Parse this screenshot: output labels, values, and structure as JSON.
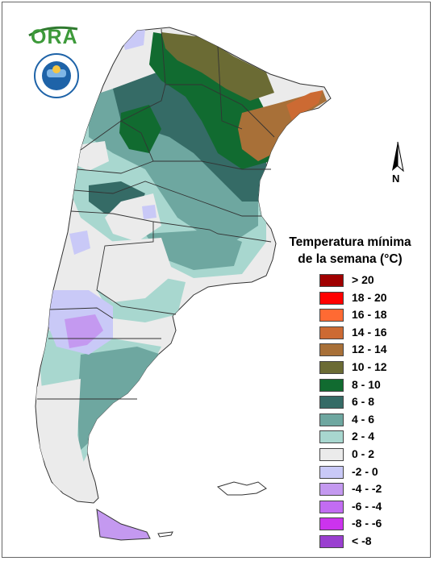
{
  "map": {
    "title_line1": "Temperatura mínima",
    "title_line2": "de la semana (°C)",
    "north_label": "N",
    "logo_text": "ORA",
    "legend": [
      {
        "label": "> 20",
        "color": "#a00000"
      },
      {
        "label": "18 - 20",
        "color": "#ff0000"
      },
      {
        "label": "16 - 18",
        "color": "#ff6a33"
      },
      {
        "label": "14 - 16",
        "color": "#cc6a33"
      },
      {
        "label": "12 - 14",
        "color": "#a87038"
      },
      {
        "label": "10 - 12",
        "color": "#6b6b34"
      },
      {
        "label": "8 - 10",
        "color": "#116b30"
      },
      {
        "label": "6 - 8",
        "color": "#356b66"
      },
      {
        "label": "4 - 6",
        "color": "#6ea7a0"
      },
      {
        "label": "2 - 4",
        "color": "#a8d7cf"
      },
      {
        "label": "0 - 2",
        "color": "#ebebeb"
      },
      {
        "label": "-2 - 0",
        "color": "#c9c9f7"
      },
      {
        "label": "-4 - -2",
        "color": "#c499f0"
      },
      {
        "label": "-6 - -4",
        "color": "#c26cf2"
      },
      {
        "label": "-8 - -6",
        "color": "#cc33ee"
      },
      {
        "label": "< -8",
        "color": "#9a3fd0"
      }
    ]
  }
}
